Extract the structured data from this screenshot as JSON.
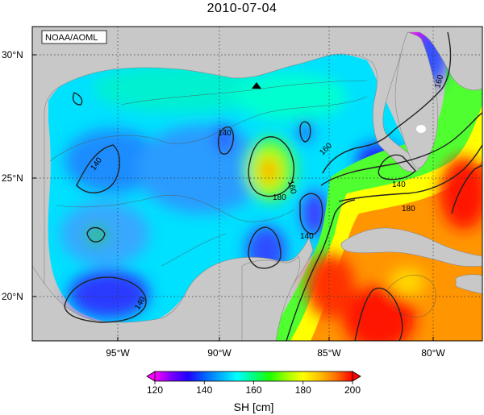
{
  "title": "2010-07-04",
  "source_badge": "NOAA/AOML",
  "lat_labels": [
    "30°N",
    "25°N",
    "20°N"
  ],
  "lon_labels": [
    "95°W",
    "90°W",
    "85°W",
    "80°W"
  ],
  "contour_labels": [
    "140",
    "140",
    "140",
    "140",
    "140",
    "160",
    "160",
    "160",
    "180",
    "180",
    "160"
  ],
  "colorbar": {
    "label": "SH [cm]",
    "ticks": [
      "120",
      "140",
      "160",
      "180",
      "200"
    ],
    "min": 120,
    "max": 200,
    "colors": [
      "#ff00ff",
      "#7a00ff",
      "#2200ff",
      "#0060ff",
      "#00b0ff",
      "#00ffff",
      "#00ff80",
      "#20ff00",
      "#a0ff00",
      "#ffff00",
      "#ffc000",
      "#ff7000",
      "#ff0000"
    ]
  },
  "marker": "triangle"
}
